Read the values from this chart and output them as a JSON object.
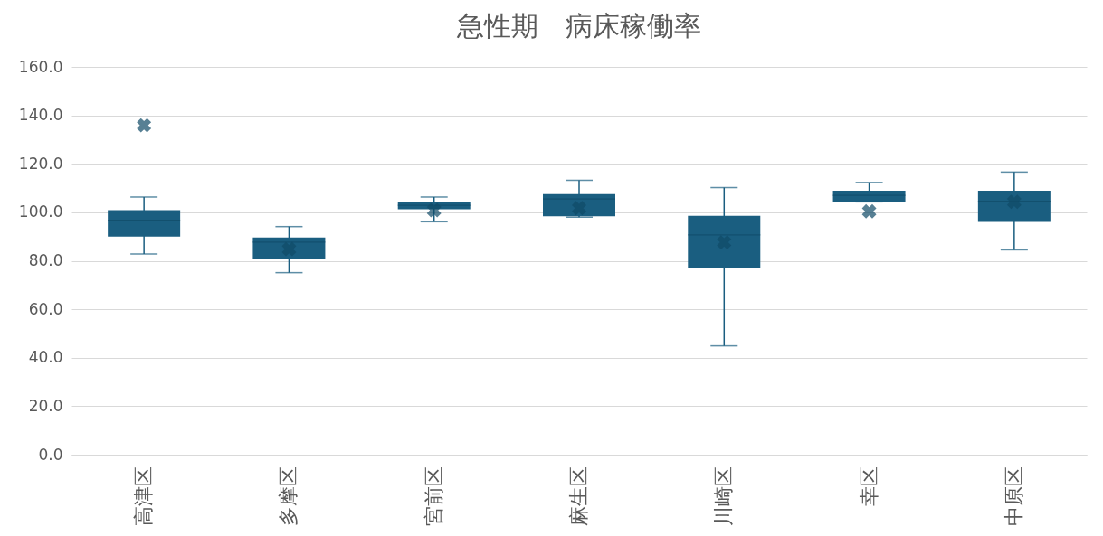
{
  "chart_data": {
    "type": "box",
    "title": "急性期　病床稼働率",
    "categories": [
      "高津区",
      "多摩区",
      "宮前区",
      "麻生区",
      "川崎区",
      "幸区",
      "中原区"
    ],
    "color": "#1a5e80",
    "boxes": [
      {
        "low": 82.8,
        "q1": 90.0,
        "median": 96.7,
        "q3": 100.9,
        "high": 106.3,
        "mean": 135.9
      },
      {
        "low": 75.1,
        "q1": 80.8,
        "median": 87.7,
        "q3": 89.6,
        "high": 94.1,
        "mean": 84.8
      },
      {
        "low": 96.1,
        "q1": 101.3,
        "median": 102.9,
        "q3": 104.4,
        "high": 106.3,
        "mean": 100.9
      },
      {
        "low": 98.0,
        "q1": 98.4,
        "median": 105.5,
        "q3": 107.5,
        "high": 113.2,
        "mean": 101.7
      },
      {
        "low": 44.9,
        "q1": 76.9,
        "median": 90.7,
        "q3": 98.6,
        "high": 110.2,
        "mean": 87.6
      },
      {
        "low": 104.3,
        "q1": 104.3,
        "median": 107.0,
        "q3": 108.9,
        "high": 112.3,
        "mean": 100.4
      },
      {
        "low": 84.5,
        "q1": 96.0,
        "median": 104.6,
        "q3": 108.9,
        "high": 116.6,
        "mean": 104.3
      }
    ],
    "ylim": [
      0,
      160
    ],
    "yticks": [
      {
        "value": 0,
        "label": "0.0"
      },
      {
        "value": 20,
        "label": "20.0"
      },
      {
        "value": 40,
        "label": "40.0"
      },
      {
        "value": 60,
        "label": "60.0"
      },
      {
        "value": 80,
        "label": "80.0"
      },
      {
        "value": 100,
        "label": "100.0"
      },
      {
        "value": 120,
        "label": "120.0"
      },
      {
        "value": 140,
        "label": "140.0"
      },
      {
        "value": 160,
        "label": "160.0"
      }
    ],
    "grid": "y",
    "marker": "cross"
  }
}
